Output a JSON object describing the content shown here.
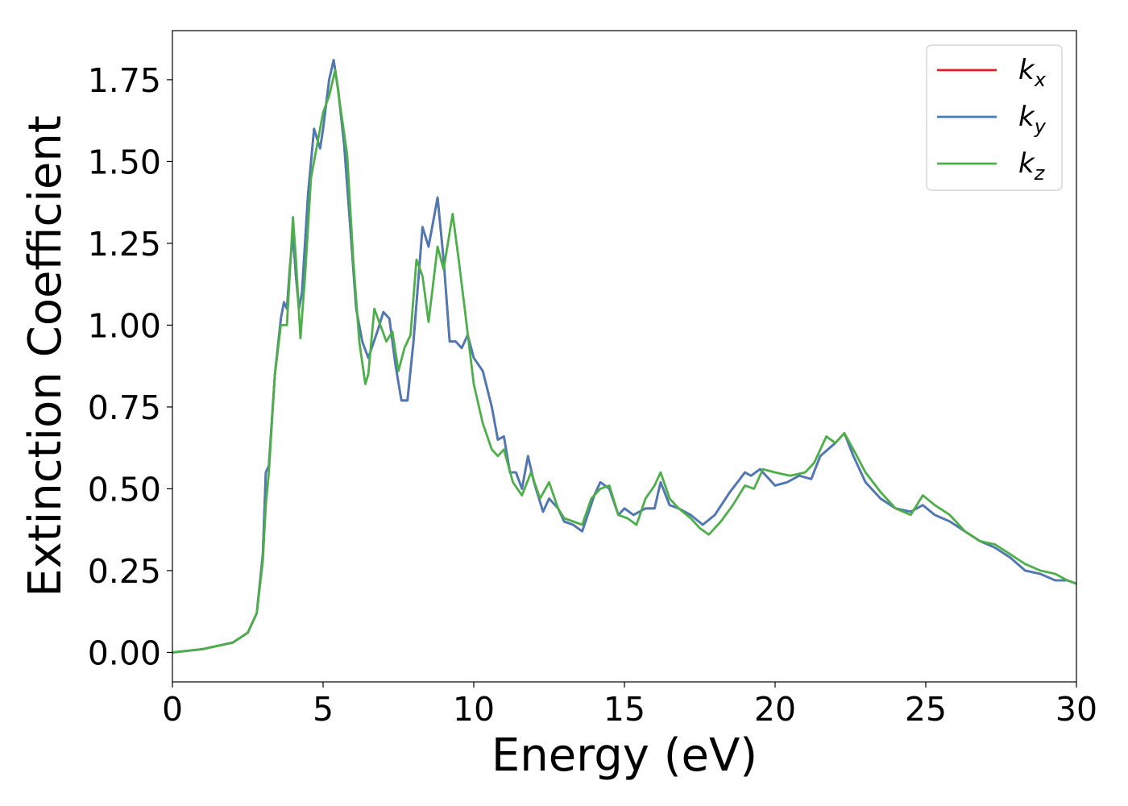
{
  "chart_data": {
    "type": "line",
    "title": "",
    "xlabel": "Energy (eV)",
    "ylabel": "Extinction Coefficient",
    "xlim": [
      0,
      30
    ],
    "ylim": [
      -0.09,
      1.9
    ],
    "xticks": [
      0,
      5,
      10,
      15,
      20,
      25,
      30
    ],
    "xtick_labels": [
      "0",
      "5",
      "10",
      "15",
      "20",
      "25",
      "30"
    ],
    "yticks": [
      0.0,
      0.25,
      0.5,
      0.75,
      1.0,
      1.25,
      1.5,
      1.75
    ],
    "ytick_labels": [
      "0.00",
      "0.25",
      "0.50",
      "0.75",
      "1.00",
      "1.25",
      "1.50",
      "1.75"
    ],
    "grid": false,
    "legend_position": "top-right",
    "series": [
      {
        "name": "k_x",
        "legend_base": "k",
        "legend_sub": "x",
        "color": "#e41a1c",
        "points": [
          [
            0,
            0.0
          ],
          [
            1,
            0.01
          ],
          [
            2,
            0.03
          ],
          [
            2.5,
            0.06
          ],
          [
            2.8,
            0.12
          ],
          [
            3.0,
            0.3
          ],
          [
            3.1,
            0.55
          ],
          [
            3.2,
            0.57
          ],
          [
            3.4,
            0.85
          ],
          [
            3.6,
            1.02
          ],
          [
            3.7,
            1.07
          ],
          [
            3.8,
            1.05
          ],
          [
            3.9,
            1.18
          ],
          [
            4.0,
            1.28
          ],
          [
            4.1,
            1.15
          ],
          [
            4.2,
            1.05
          ],
          [
            4.3,
            1.1
          ],
          [
            4.5,
            1.4
          ],
          [
            4.7,
            1.6
          ],
          [
            4.9,
            1.54
          ],
          [
            5.0,
            1.6
          ],
          [
            5.2,
            1.75
          ],
          [
            5.35,
            1.81
          ],
          [
            5.5,
            1.72
          ],
          [
            5.7,
            1.55
          ],
          [
            5.9,
            1.3
          ],
          [
            6.1,
            1.05
          ],
          [
            6.3,
            0.95
          ],
          [
            6.5,
            0.9
          ],
          [
            6.8,
            0.98
          ],
          [
            7.0,
            1.04
          ],
          [
            7.2,
            1.02
          ],
          [
            7.4,
            0.88
          ],
          [
            7.6,
            0.77
          ],
          [
            7.8,
            0.77
          ],
          [
            8.0,
            0.95
          ],
          [
            8.3,
            1.3
          ],
          [
            8.5,
            1.24
          ],
          [
            8.8,
            1.39
          ],
          [
            9.0,
            1.2
          ],
          [
            9.2,
            0.95
          ],
          [
            9.4,
            0.95
          ],
          [
            9.6,
            0.93
          ],
          [
            9.8,
            0.97
          ],
          [
            10.0,
            0.9
          ],
          [
            10.3,
            0.86
          ],
          [
            10.6,
            0.75
          ],
          [
            10.8,
            0.65
          ],
          [
            11.0,
            0.66
          ],
          [
            11.2,
            0.55
          ],
          [
            11.4,
            0.55
          ],
          [
            11.6,
            0.5
          ],
          [
            11.8,
            0.6
          ],
          [
            12.0,
            0.52
          ],
          [
            12.3,
            0.43
          ],
          [
            12.5,
            0.47
          ],
          [
            12.8,
            0.44
          ],
          [
            13.0,
            0.4
          ],
          [
            13.3,
            0.39
          ],
          [
            13.6,
            0.37
          ],
          [
            14.0,
            0.48
          ],
          [
            14.2,
            0.52
          ],
          [
            14.5,
            0.5
          ],
          [
            14.8,
            0.42
          ],
          [
            15.0,
            0.44
          ],
          [
            15.3,
            0.42
          ],
          [
            15.7,
            0.44
          ],
          [
            16.0,
            0.44
          ],
          [
            16.2,
            0.52
          ],
          [
            16.5,
            0.45
          ],
          [
            16.8,
            0.44
          ],
          [
            17.2,
            0.42
          ],
          [
            17.6,
            0.39
          ],
          [
            18.0,
            0.42
          ],
          [
            18.5,
            0.49
          ],
          [
            19.0,
            0.55
          ],
          [
            19.2,
            0.54
          ],
          [
            19.5,
            0.56
          ],
          [
            20.0,
            0.51
          ],
          [
            20.4,
            0.52
          ],
          [
            20.8,
            0.54
          ],
          [
            21.2,
            0.53
          ],
          [
            21.5,
            0.6
          ],
          [
            22.0,
            0.64
          ],
          [
            22.3,
            0.67
          ],
          [
            22.6,
            0.6
          ],
          [
            23.0,
            0.52
          ],
          [
            23.5,
            0.47
          ],
          [
            24.0,
            0.44
          ],
          [
            24.5,
            0.43
          ],
          [
            24.9,
            0.45
          ],
          [
            25.3,
            0.42
          ],
          [
            25.8,
            0.4
          ],
          [
            26.3,
            0.37
          ],
          [
            26.8,
            0.34
          ],
          [
            27.3,
            0.32
          ],
          [
            27.8,
            0.29
          ],
          [
            28.3,
            0.25
          ],
          [
            28.8,
            0.24
          ],
          [
            29.3,
            0.22
          ],
          [
            29.7,
            0.22
          ],
          [
            30.0,
            0.21
          ]
        ]
      },
      {
        "name": "k_y",
        "legend_base": "k",
        "legend_sub": "y",
        "color": "#4a7bb7",
        "points": [
          [
            0,
            0.0
          ],
          [
            1,
            0.01
          ],
          [
            2,
            0.03
          ],
          [
            2.5,
            0.06
          ],
          [
            2.8,
            0.12
          ],
          [
            3.0,
            0.3
          ],
          [
            3.1,
            0.55
          ],
          [
            3.2,
            0.57
          ],
          [
            3.4,
            0.85
          ],
          [
            3.6,
            1.02
          ],
          [
            3.7,
            1.07
          ],
          [
            3.8,
            1.05
          ],
          [
            3.9,
            1.18
          ],
          [
            4.0,
            1.28
          ],
          [
            4.1,
            1.15
          ],
          [
            4.2,
            1.05
          ],
          [
            4.3,
            1.1
          ],
          [
            4.5,
            1.4
          ],
          [
            4.7,
            1.6
          ],
          [
            4.9,
            1.54
          ],
          [
            5.0,
            1.6
          ],
          [
            5.2,
            1.75
          ],
          [
            5.35,
            1.81
          ],
          [
            5.5,
            1.72
          ],
          [
            5.7,
            1.55
          ],
          [
            5.9,
            1.3
          ],
          [
            6.1,
            1.05
          ],
          [
            6.3,
            0.95
          ],
          [
            6.5,
            0.9
          ],
          [
            6.8,
            0.98
          ],
          [
            7.0,
            1.04
          ],
          [
            7.2,
            1.02
          ],
          [
            7.4,
            0.88
          ],
          [
            7.6,
            0.77
          ],
          [
            7.8,
            0.77
          ],
          [
            8.0,
            0.95
          ],
          [
            8.3,
            1.3
          ],
          [
            8.5,
            1.24
          ],
          [
            8.8,
            1.39
          ],
          [
            9.0,
            1.2
          ],
          [
            9.2,
            0.95
          ],
          [
            9.4,
            0.95
          ],
          [
            9.6,
            0.93
          ],
          [
            9.8,
            0.97
          ],
          [
            10.0,
            0.9
          ],
          [
            10.3,
            0.86
          ],
          [
            10.6,
            0.75
          ],
          [
            10.8,
            0.65
          ],
          [
            11.0,
            0.66
          ],
          [
            11.2,
            0.55
          ],
          [
            11.4,
            0.55
          ],
          [
            11.6,
            0.5
          ],
          [
            11.8,
            0.6
          ],
          [
            12.0,
            0.52
          ],
          [
            12.3,
            0.43
          ],
          [
            12.5,
            0.47
          ],
          [
            12.8,
            0.44
          ],
          [
            13.0,
            0.4
          ],
          [
            13.3,
            0.39
          ],
          [
            13.6,
            0.37
          ],
          [
            14.0,
            0.48
          ],
          [
            14.2,
            0.52
          ],
          [
            14.5,
            0.5
          ],
          [
            14.8,
            0.42
          ],
          [
            15.0,
            0.44
          ],
          [
            15.3,
            0.42
          ],
          [
            15.7,
            0.44
          ],
          [
            16.0,
            0.44
          ],
          [
            16.2,
            0.52
          ],
          [
            16.5,
            0.45
          ],
          [
            16.8,
            0.44
          ],
          [
            17.2,
            0.42
          ],
          [
            17.6,
            0.39
          ],
          [
            18.0,
            0.42
          ],
          [
            18.5,
            0.49
          ],
          [
            19.0,
            0.55
          ],
          [
            19.2,
            0.54
          ],
          [
            19.5,
            0.56
          ],
          [
            20.0,
            0.51
          ],
          [
            20.4,
            0.52
          ],
          [
            20.8,
            0.54
          ],
          [
            21.2,
            0.53
          ],
          [
            21.5,
            0.6
          ],
          [
            22.0,
            0.64
          ],
          [
            22.3,
            0.67
          ],
          [
            22.6,
            0.6
          ],
          [
            23.0,
            0.52
          ],
          [
            23.5,
            0.47
          ],
          [
            24.0,
            0.44
          ],
          [
            24.5,
            0.43
          ],
          [
            24.9,
            0.45
          ],
          [
            25.3,
            0.42
          ],
          [
            25.8,
            0.4
          ],
          [
            26.3,
            0.37
          ],
          [
            26.8,
            0.34
          ],
          [
            27.3,
            0.32
          ],
          [
            27.8,
            0.29
          ],
          [
            28.3,
            0.25
          ],
          [
            28.8,
            0.24
          ],
          [
            29.3,
            0.22
          ],
          [
            29.7,
            0.22
          ],
          [
            30.0,
            0.21
          ]
        ]
      },
      {
        "name": "k_z",
        "legend_base": "k",
        "legend_sub": "z",
        "color": "#4daf4a",
        "points": [
          [
            0,
            0.0
          ],
          [
            1,
            0.01
          ],
          [
            2,
            0.03
          ],
          [
            2.5,
            0.06
          ],
          [
            2.8,
            0.12
          ],
          [
            3.0,
            0.28
          ],
          [
            3.1,
            0.45
          ],
          [
            3.2,
            0.55
          ],
          [
            3.4,
            0.85
          ],
          [
            3.6,
            1.0
          ],
          [
            3.8,
            1.0
          ],
          [
            4.0,
            1.33
          ],
          [
            4.1,
            1.2
          ],
          [
            4.25,
            0.96
          ],
          [
            4.4,
            1.15
          ],
          [
            4.6,
            1.45
          ],
          [
            4.8,
            1.55
          ],
          [
            5.0,
            1.65
          ],
          [
            5.2,
            1.7
          ],
          [
            5.4,
            1.78
          ],
          [
            5.6,
            1.65
          ],
          [
            5.8,
            1.52
          ],
          [
            6.0,
            1.2
          ],
          [
            6.2,
            0.95
          ],
          [
            6.4,
            0.82
          ],
          [
            6.5,
            0.85
          ],
          [
            6.7,
            1.05
          ],
          [
            6.9,
            1.0
          ],
          [
            7.1,
            0.95
          ],
          [
            7.3,
            0.98
          ],
          [
            7.5,
            0.86
          ],
          [
            7.7,
            0.93
          ],
          [
            7.9,
            0.97
          ],
          [
            8.1,
            1.2
          ],
          [
            8.3,
            1.15
          ],
          [
            8.5,
            1.01
          ],
          [
            8.8,
            1.24
          ],
          [
            9.0,
            1.17
          ],
          [
            9.3,
            1.34
          ],
          [
            9.5,
            1.2
          ],
          [
            9.7,
            1.05
          ],
          [
            10.0,
            0.82
          ],
          [
            10.3,
            0.7
          ],
          [
            10.6,
            0.62
          ],
          [
            10.8,
            0.6
          ],
          [
            11.0,
            0.62
          ],
          [
            11.3,
            0.52
          ],
          [
            11.6,
            0.48
          ],
          [
            11.9,
            0.55
          ],
          [
            12.2,
            0.47
          ],
          [
            12.5,
            0.52
          ],
          [
            12.8,
            0.44
          ],
          [
            13.0,
            0.41
          ],
          [
            13.3,
            0.4
          ],
          [
            13.6,
            0.39
          ],
          [
            13.9,
            0.47
          ],
          [
            14.2,
            0.5
          ],
          [
            14.5,
            0.51
          ],
          [
            14.8,
            0.42
          ],
          [
            15.1,
            0.41
          ],
          [
            15.4,
            0.39
          ],
          [
            15.7,
            0.47
          ],
          [
            16.0,
            0.51
          ],
          [
            16.2,
            0.55
          ],
          [
            16.5,
            0.47
          ],
          [
            16.8,
            0.44
          ],
          [
            17.2,
            0.41
          ],
          [
            17.5,
            0.38
          ],
          [
            17.8,
            0.36
          ],
          [
            18.2,
            0.4
          ],
          [
            18.6,
            0.45
          ],
          [
            19.0,
            0.51
          ],
          [
            19.3,
            0.5
          ],
          [
            19.6,
            0.56
          ],
          [
            20.0,
            0.55
          ],
          [
            20.5,
            0.54
          ],
          [
            21.0,
            0.55
          ],
          [
            21.3,
            0.58
          ],
          [
            21.7,
            0.66
          ],
          [
            22.0,
            0.64
          ],
          [
            22.3,
            0.67
          ],
          [
            22.6,
            0.62
          ],
          [
            23.0,
            0.55
          ],
          [
            23.5,
            0.49
          ],
          [
            24.0,
            0.44
          ],
          [
            24.5,
            0.42
          ],
          [
            24.9,
            0.48
          ],
          [
            25.3,
            0.45
          ],
          [
            25.8,
            0.42
          ],
          [
            26.3,
            0.37
          ],
          [
            26.8,
            0.34
          ],
          [
            27.3,
            0.33
          ],
          [
            27.8,
            0.3
          ],
          [
            28.3,
            0.27
          ],
          [
            28.8,
            0.25
          ],
          [
            29.3,
            0.24
          ],
          [
            29.7,
            0.22
          ],
          [
            30.0,
            0.21
          ]
        ]
      }
    ]
  }
}
